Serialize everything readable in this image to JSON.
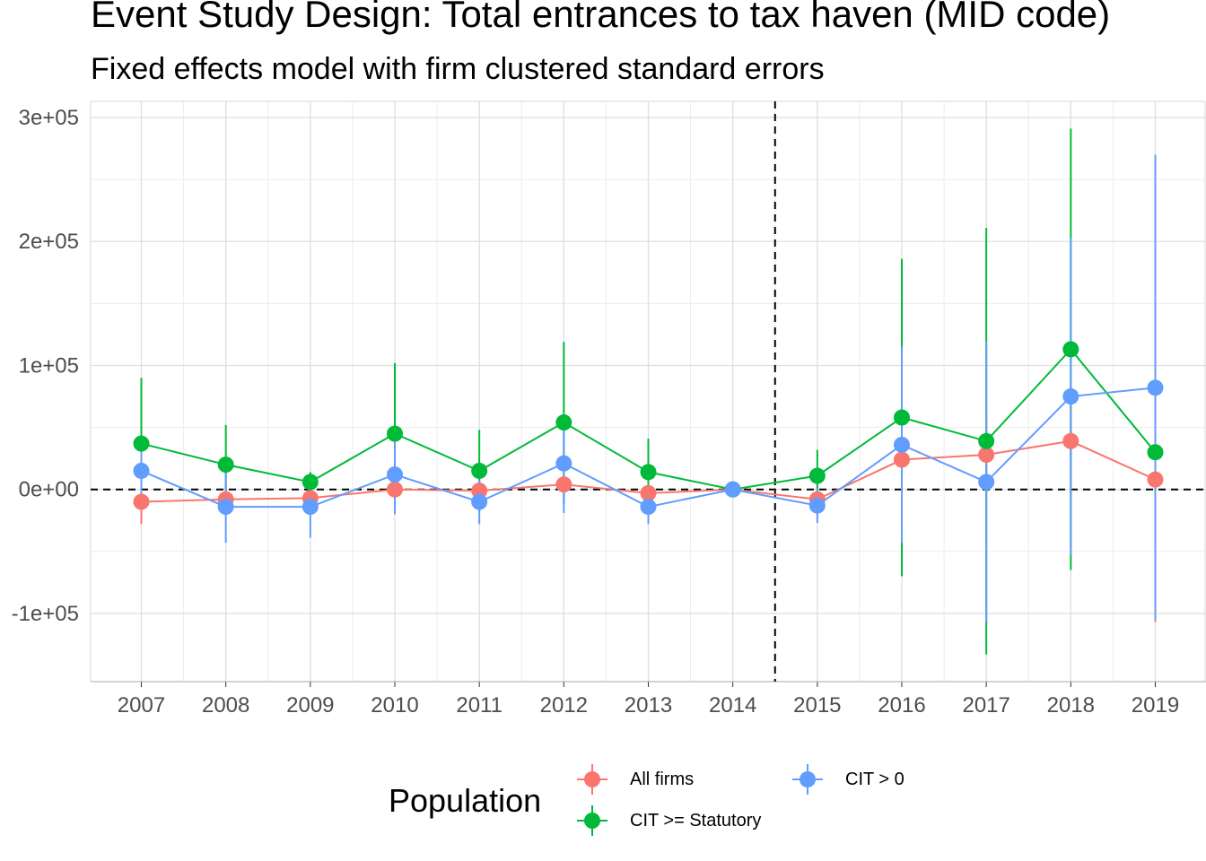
{
  "title": "Event Study Design: Total entrances to tax haven (MID code)",
  "subtitle": "Fixed effects model with firm clustered standard errors",
  "chart_data": {
    "type": "line",
    "x": [
      2007,
      2008,
      2009,
      2010,
      2011,
      2012,
      2013,
      2014,
      2015,
      2016,
      2017,
      2018,
      2019
    ],
    "x_tick_labels": [
      "2007",
      "2008",
      "2009",
      "2010",
      "2011",
      "2012",
      "2013",
      "2014",
      "2015",
      "2016",
      "2017",
      "2018",
      "2019"
    ],
    "y_tick_values": [
      -100000,
      0,
      100000,
      200000,
      300000
    ],
    "y_tick_labels": [
      "-1e+05",
      "0e+00",
      "1e+05",
      "2e+05",
      "3e+05"
    ],
    "ylim": [
      -155000,
      313000
    ],
    "reference_lines": {
      "horizontal_y": 0,
      "vertical_x": 2014.5,
      "style": "dashed"
    },
    "grid": true,
    "legend": {
      "title": "Population",
      "placement": "bottom"
    },
    "series": [
      {
        "name": "All firms",
        "color": "#F8766D",
        "values": [
          -10000,
          -8000,
          -7000,
          0,
          -1000,
          4000,
          -3000,
          0,
          -8000,
          24000,
          28000,
          39000,
          8000
        ],
        "lower": [
          -28000,
          -20000,
          -18000,
          -12000,
          -16000,
          -8000,
          -14000,
          0,
          -22000,
          -5000,
          -5000,
          -5000,
          -107000
        ],
        "upper": [
          8000,
          4000,
          4000,
          12000,
          14000,
          16000,
          8000,
          0,
          6000,
          53000,
          61000,
          83000,
          123000
        ]
      },
      {
        "name": "CIT >= Statutory",
        "color": "#00BA38",
        "values": [
          37000,
          20000,
          6000,
          45000,
          15000,
          54000,
          14000,
          0,
          11000,
          58000,
          39000,
          113000,
          30000
        ],
        "lower": [
          -16000,
          -12000,
          -2000,
          -12000,
          -18000,
          -12000,
          -12000,
          0,
          -10000,
          -70000,
          -133000,
          -65000,
          -50000
        ],
        "upper": [
          90000,
          52000,
          14000,
          102000,
          48000,
          119000,
          41000,
          0,
          32000,
          186000,
          211000,
          291000,
          110000
        ]
      },
      {
        "name": "CIT > 0",
        "color": "#619CFF",
        "values": [
          15000,
          -14000,
          -14000,
          12000,
          -10000,
          21000,
          -14000,
          0,
          -13000,
          36000,
          6000,
          75000,
          82000
        ],
        "lower": [
          -5000,
          -43000,
          -39000,
          -20000,
          -28000,
          -19000,
          -28000,
          0,
          -27000,
          -43000,
          -107000,
          -53000,
          -105000
        ],
        "upper": [
          35000,
          15000,
          11000,
          44000,
          8000,
          61000,
          0,
          0,
          1000,
          115000,
          119000,
          203000,
          270000
        ]
      }
    ]
  }
}
